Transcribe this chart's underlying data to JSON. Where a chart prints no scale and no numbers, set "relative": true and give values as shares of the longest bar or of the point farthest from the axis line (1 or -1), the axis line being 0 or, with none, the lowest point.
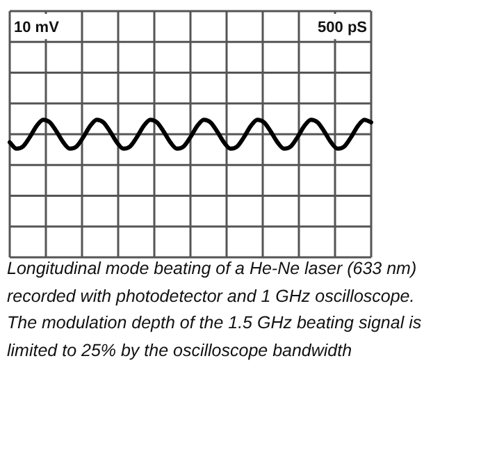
{
  "chart_data": {
    "type": "line",
    "relative": true,
    "grid": true,
    "marker": "none",
    "line_style": "solid",
    "legend": false,
    "categories": [
      null,
      null,
      null,
      null,
      null,
      null,
      null,
      null,
      null,
      null,
      null,
      null,
      null,
      null,
      null,
      null,
      null,
      null,
      null,
      null,
      null,
      null,
      null,
      null,
      null,
      null,
      null,
      null,
      null,
      null,
      null,
      null,
      null,
      null,
      null,
      null,
      null,
      null,
      null,
      null,
      null,
      null,
      null,
      null,
      null,
      null,
      null,
      null,
      null,
      null,
      null,
      null,
      null,
      null,
      null
    ],
    "series": [
      {
        "color": "#000000",
        "values": [
          -0.56,
          -1,
          -0.84,
          -0.2,
          0.56,
          1,
          0.82,
          0.18,
          -0.56,
          -1,
          -0.84,
          -0.2,
          0.56,
          1,
          0.82,
          0.18,
          -0.56,
          -1,
          -0.84,
          -0.2,
          0.56,
          1,
          0.82,
          0.18,
          -0.56,
          -1,
          -0.84,
          -0.2,
          0.56,
          1,
          0.82,
          0.18,
          -0.56,
          -1,
          -0.84,
          -0.2,
          0.56,
          1,
          0.82,
          0.18,
          -0.56,
          -1,
          -0.84,
          -0.2,
          0.56,
          1,
          0.82,
          0.18,
          -0.56,
          -1,
          -0.84,
          -0.2,
          0.56,
          1,
          0.82
        ]
      }
    ],
    "annotations": [
      "10 mV",
      "500 pS",
      "Longitudinal mode beating of a He-Ne laser (633 nm) recorded with photodetector and 1 GHz oscilloscope. The modulation depth of the 1.5 GHz beating signal is limited to 25% by the oscilloscope bandwidth"
    ]
  }
}
